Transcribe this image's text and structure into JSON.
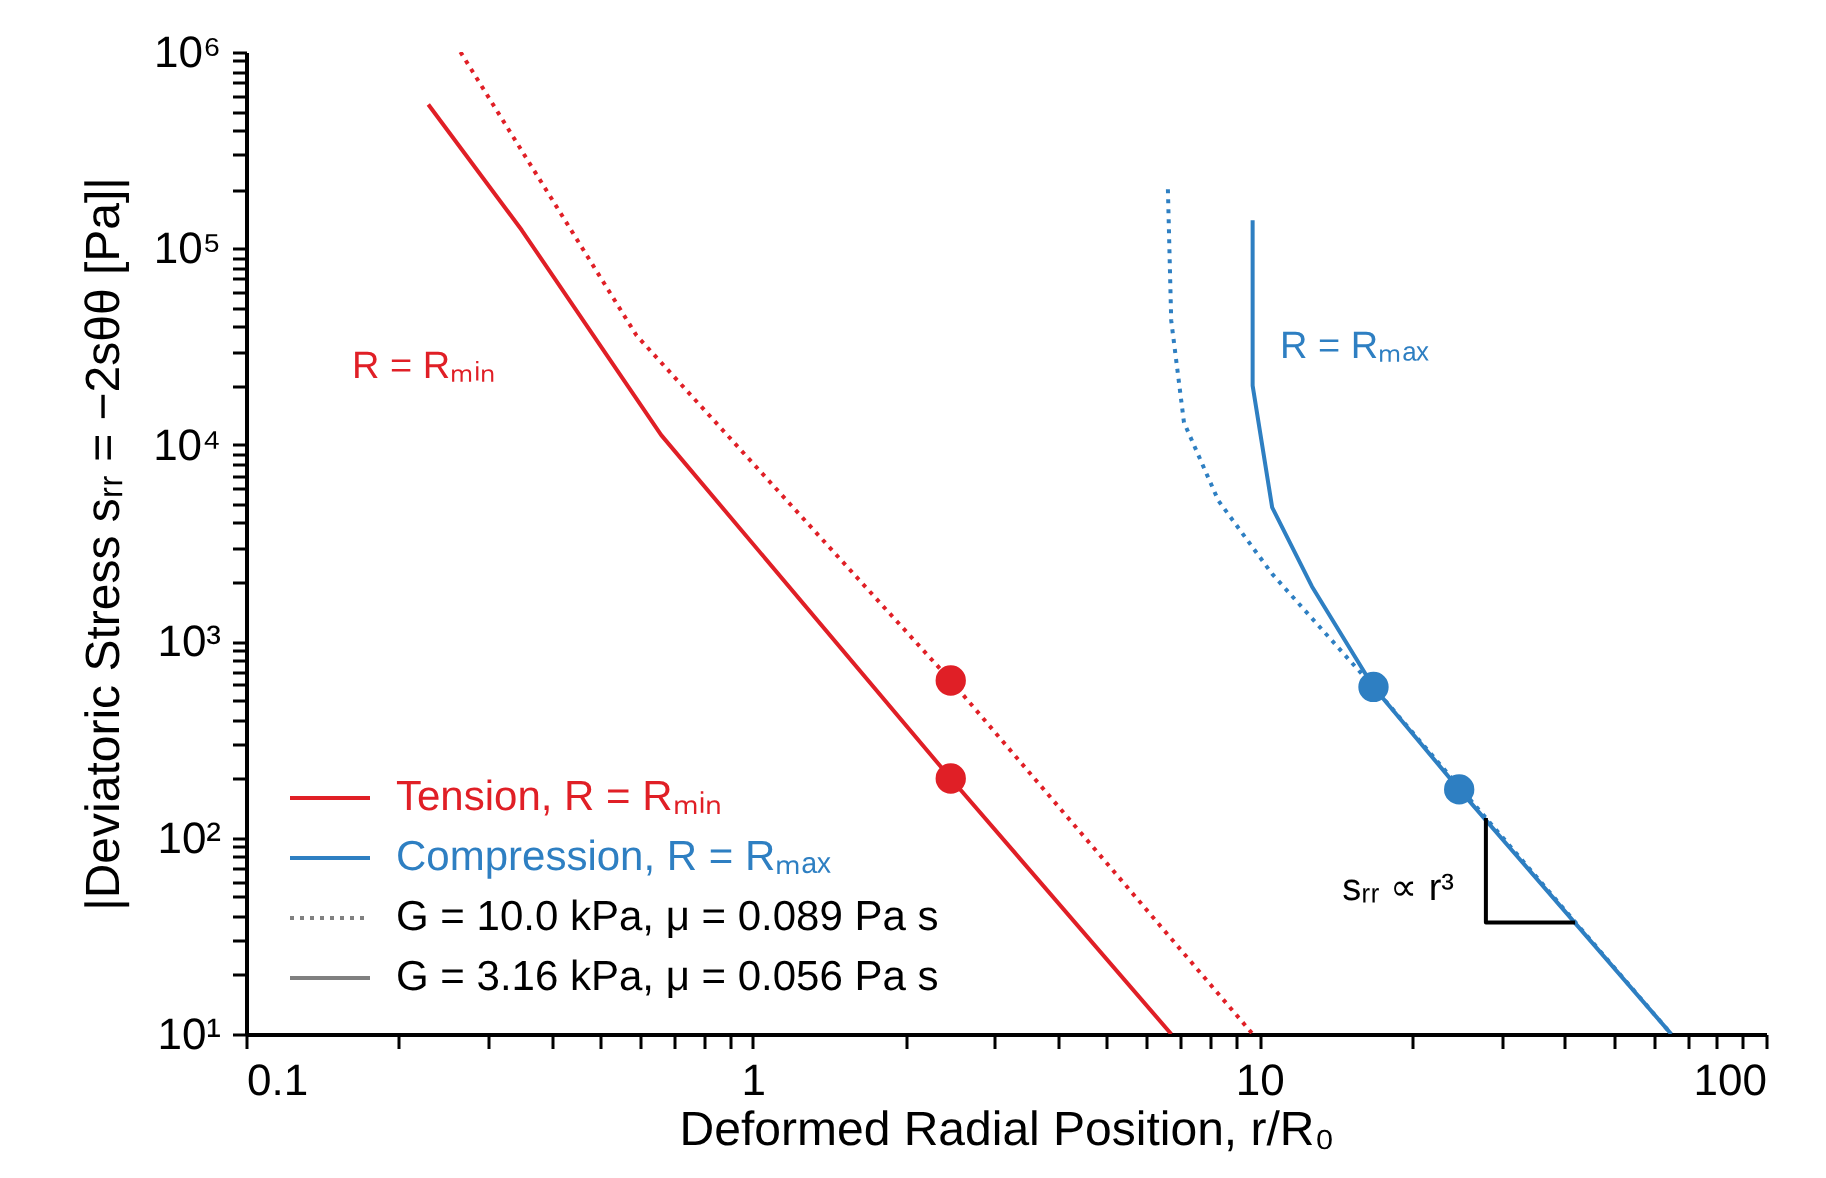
{
  "chart_data": {
    "type": "line",
    "xlabel": "Deformed Radial Position, r/R₀",
    "ylabel": "|Deviatoric Stress sᵣᵣ = −2sθθ [Pa]|",
    "log": "xy",
    "grid": false,
    "legend": "bottom left",
    "xlim": [
      0.1,
      100
    ],
    "xticks": [
      0.1,
      {
        "value": 0.2,
        "label": null
      },
      {
        "value": 0.3,
        "label": null
      },
      {
        "value": 0.4,
        "label": null
      },
      {
        "value": 0.5,
        "label": null
      },
      {
        "value": 0.6,
        "label": null
      },
      {
        "value": 0.7,
        "label": null
      },
      {
        "value": 0.8,
        "label": null
      },
      {
        "value": 0.9,
        "label": null
      },
      1,
      {
        "value": 2,
        "label": null
      },
      {
        "value": 3,
        "label": null
      },
      {
        "value": 4,
        "label": null
      },
      {
        "value": 5,
        "label": null
      },
      {
        "value": 6,
        "label": null
      },
      {
        "value": 7,
        "label": null
      },
      {
        "value": 8,
        "label": null
      },
      {
        "value": 9,
        "label": null
      },
      10,
      {
        "value": 20,
        "label": null
      },
      {
        "value": 30,
        "label": null
      },
      {
        "value": 40,
        "label": null
      },
      {
        "value": 50,
        "label": null
      },
      {
        "value": 60,
        "label": null
      },
      {
        "value": 70,
        "label": null
      },
      {
        "value": 80,
        "label": null
      },
      {
        "value": 90,
        "label": null
      },
      100
    ],
    "ylim": [
      10,
      1000000
    ],
    "yticks": [
      {
        "value": 10,
        "label": "10¹"
      },
      {
        "value": 20,
        "label": null
      },
      {
        "value": 30,
        "label": null
      },
      {
        "value": 40,
        "label": null
      },
      {
        "value": 50,
        "label": null
      },
      {
        "value": 60,
        "label": null
      },
      {
        "value": 70,
        "label": null
      },
      {
        "value": 80,
        "label": null
      },
      {
        "value": 90,
        "label": null
      },
      {
        "value": 100,
        "label": "10²"
      },
      {
        "value": 200,
        "label": null
      },
      {
        "value": 300,
        "label": null
      },
      {
        "value": 400,
        "label": null
      },
      {
        "value": 500,
        "label": null
      },
      {
        "value": 600,
        "label": null
      },
      {
        "value": 700,
        "label": null
      },
      {
        "value": 800,
        "label": null
      },
      {
        "value": 900,
        "label": null
      },
      {
        "value": 1000,
        "label": "10³"
      },
      {
        "value": 2000,
        "label": null
      },
      {
        "value": 3000,
        "label": null
      },
      {
        "value": 4000,
        "label": null
      },
      {
        "value": 5000,
        "label": null
      },
      {
        "value": 6000,
        "label": null
      },
      {
        "value": 7000,
        "label": null
      },
      {
        "value": 8000,
        "label": null
      },
      {
        "value": 9000,
        "label": null
      },
      {
        "value": 10000,
        "label": "10⁴"
      },
      {
        "value": 20000,
        "label": null
      },
      {
        "value": 30000,
        "label": null
      },
      {
        "value": 40000,
        "label": null
      },
      {
        "value": 50000,
        "label": null
      },
      {
        "value": 60000,
        "label": null
      },
      {
        "value": 70000,
        "label": null
      },
      {
        "value": 80000,
        "label": null
      },
      {
        "value": 90000,
        "label": null
      },
      {
        "value": 100000,
        "label": "10⁵"
      },
      {
        "value": 200000,
        "label": null
      },
      {
        "value": 300000,
        "label": null
      },
      {
        "value": 400000,
        "label": null
      },
      {
        "value": 500000,
        "label": null
      },
      {
        "value": 600000,
        "label": null
      },
      {
        "value": 700000,
        "label": null
      },
      {
        "value": 800000,
        "label": null
      },
      {
        "value": 900000,
        "label": null
      },
      {
        "value": 1000000,
        "label": "10⁶"
      }
    ],
    "series": [
      {
        "name": "Tension, R = Rₘᵢₙ",
        "color": "#e01f26",
        "line_style": "solid",
        "x": [
          0.229,
          0.35,
          0.66,
          2.46,
          6.7
        ],
        "values": [
          540000,
          124000,
          11200,
          200,
          10
        ]
      },
      {
        "name": "Compression, R = Rₘₐₓ",
        "color": "#2e7fc2",
        "line_style": "solid",
        "x": [
          9.7,
          9.7,
          10.6,
          12.7,
          16.8,
          24.8,
          65
        ],
        "values": [
          139000,
          20000,
          4800,
          1900,
          585,
          176,
          10
        ]
      },
      {
        "color": "#e01f26",
        "line_style": "dotted",
        "x": [
          0.265,
          0.59,
          2.46,
          9.7
        ],
        "values": [
          1000000,
          36000,
          631,
          10
        ]
      },
      {
        "color": "#2e7fc2",
        "line_style": "dotted",
        "x": [
          6.6,
          6.7,
          7.1,
          8.3,
          10.6,
          16.8,
          65
        ],
        "values": [
          200000,
          43000,
          13000,
          5200,
          2200,
          585,
          10
        ]
      },
      {
        "color": "#e01f26",
        "type": "scatter",
        "marker": "circle",
        "x": [
          2.46,
          2.46
        ],
        "values": [
          631,
          200
        ]
      },
      {
        "color": "#2e7fc2",
        "type": "scatter",
        "marker": "circle",
        "x": [
          16.8,
          24.8
        ],
        "values": [
          585,
          176
        ]
      },
      {
        "color": "#000000",
        "line_style": "solid",
        "x": [
          28,
          28,
          42
        ],
        "values": [
          126,
          37,
          37
        ]
      }
    ],
    "annotations": [
      "R = Rₘᵢₙ",
      "R = Rₘₐₓ",
      "sᵣᵣ ∝ r³",
      "G = 10.0 kPa, μ = 0.089 Pa s",
      "G = 3.16 kPa, μ = 0.056 Pa s"
    ]
  }
}
